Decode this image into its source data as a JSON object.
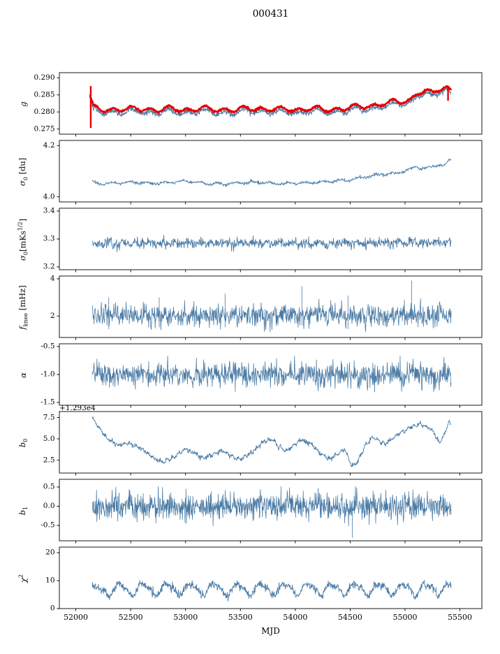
{
  "chart_data": {
    "type": "line",
    "title": "000431",
    "xlabel": "MJD",
    "xlim": [
      51850,
      55700
    ],
    "xticks": [
      52000,
      52500,
      53000,
      53500,
      54000,
      54500,
      55000,
      55500
    ],
    "legend": "none",
    "grid": false,
    "colors": {
      "series_blue": "#4a7ba6",
      "series_red": "#e60000",
      "axis": "#000000"
    },
    "panels": [
      {
        "name": "g",
        "ylabel_html": "<i>g</i>",
        "ylim": [
          0.2735,
          0.2915
        ],
        "yticks": [
          0.275,
          0.28,
          0.285,
          0.29
        ],
        "ytick_labels": [
          "0.275",
          "0.280",
          "0.285",
          "0.290"
        ],
        "series": [
          {
            "name": "g_blue",
            "color": "#4a7ba6",
            "lw": 0.9,
            "n": 1300,
            "seed": 101,
            "x_range": [
              52130,
              55420
            ],
            "noise": 0.00035,
            "wobbles": [
              {
                "period": 170,
                "amp": 0.0006,
                "phase": 0.3
              },
              {
                "period": 340,
                "amp": 0.00035,
                "phase": 1.2
              }
            ],
            "trend": [
              [
                52130,
                0.2834
              ],
              [
                52160,
                0.2803
              ],
              [
                52250,
                0.2799
              ],
              [
                52350,
                0.2801
              ],
              [
                52450,
                0.2797
              ],
              [
                52550,
                0.2802
              ],
              [
                52650,
                0.28
              ],
              [
                52750,
                0.2797
              ],
              [
                52850,
                0.2801
              ],
              [
                52950,
                0.28
              ],
              [
                53050,
                0.2798
              ],
              [
                53150,
                0.2801
              ],
              [
                53250,
                0.2799
              ],
              [
                53350,
                0.28
              ],
              [
                53450,
                0.2797
              ],
              [
                53550,
                0.2801
              ],
              [
                53650,
                0.2803
              ],
              [
                53750,
                0.28
              ],
              [
                53850,
                0.2798
              ],
              [
                53950,
                0.28
              ],
              [
                54050,
                0.2799
              ],
              [
                54150,
                0.2801
              ],
              [
                54250,
                0.2799
              ],
              [
                54350,
                0.28
              ],
              [
                54450,
                0.2802
              ],
              [
                54550,
                0.2806
              ],
              [
                54650,
                0.2809
              ],
              [
                54750,
                0.2813
              ],
              [
                54850,
                0.2818
              ],
              [
                54950,
                0.2823
              ],
              [
                55050,
                0.2828
              ],
              [
                55120,
                0.2848
              ],
              [
                55180,
                0.2852
              ],
              [
                55250,
                0.2845
              ],
              [
                55320,
                0.2862
              ],
              [
                55380,
                0.2866
              ],
              [
                55420,
                0.2856
              ]
            ]
          },
          {
            "name": "g_red",
            "color": "#e60000",
            "lw": 2.4,
            "n": 1200,
            "seed": 202,
            "trend_ref": 0,
            "y_offset": 0.0008,
            "noise": 0.00016,
            "spikes": [
              [
                52136,
                0.2753,
                0.2876
              ],
              [
                55392,
                0.2833,
                0.2872
              ]
            ]
          }
        ]
      },
      {
        "name": "sigma0_du",
        "ylabel_html": "<i>&#963;</i><sub>0</sub> [du]",
        "ylim": [
          3.98,
          4.22
        ],
        "yticks": [
          4.0,
          4.2
        ],
        "ytick_labels": [
          "4.0",
          "4.2"
        ],
        "series": [
          {
            "name": "sigma0",
            "color": "#4a7ba6",
            "lw": 0.9,
            "n": 900,
            "seed": 303,
            "x_range": [
              52150,
              55420
            ],
            "noise": 0.0028,
            "wobbles": [
              {
                "period": 160,
                "amp": 0.0035,
                "phase": 0.8
              }
            ],
            "trend": [
              [
                52150,
                4.063
              ],
              [
                52200,
                4.05
              ],
              [
                52300,
                4.052
              ],
              [
                52400,
                4.055
              ],
              [
                52500,
                4.057
              ],
              [
                52600,
                4.056
              ],
              [
                52700,
                4.052
              ],
              [
                52800,
                4.055
              ],
              [
                52900,
                4.058
              ],
              [
                53000,
                4.06
              ],
              [
                53100,
                4.058
              ],
              [
                53200,
                4.052
              ],
              [
                53300,
                4.05
              ],
              [
                53400,
                4.052
              ],
              [
                53500,
                4.054
              ],
              [
                53600,
                4.057
              ],
              [
                53700,
                4.055
              ],
              [
                53800,
                4.053
              ],
              [
                53900,
                4.052
              ],
              [
                54000,
                4.052
              ],
              [
                54100,
                4.055
              ],
              [
                54200,
                4.057
              ],
              [
                54300,
                4.059
              ],
              [
                54400,
                4.062
              ],
              [
                54500,
                4.066
              ],
              [
                54600,
                4.075
              ],
              [
                54700,
                4.082
              ],
              [
                54800,
                4.088
              ],
              [
                54900,
                4.09
              ],
              [
                55000,
                4.1
              ],
              [
                55050,
                4.108
              ],
              [
                55100,
                4.118
              ],
              [
                55150,
                4.11
              ],
              [
                55200,
                4.112
              ],
              [
                55250,
                4.12
              ],
              [
                55300,
                4.125
              ],
              [
                55350,
                4.118
              ],
              [
                55400,
                4.14
              ],
              [
                55420,
                4.15
              ]
            ]
          }
        ]
      },
      {
        "name": "sigma0_mK",
        "ylabel_html": "<i>&#963;</i><sub>0</sub>[mKs<sup>1/2</sup>]",
        "ylim": [
          3.19,
          3.41
        ],
        "yticks": [
          3.2,
          3.3,
          3.4
        ],
        "ytick_labels": [
          "3.2",
          "3.3",
          "3.4"
        ],
        "series": [
          {
            "name": "sigma0_mK",
            "color": "#4a7ba6",
            "lw": 0.9,
            "n": 900,
            "seed": 404,
            "x_range": [
              52150,
              55420
            ],
            "noise": 0.009,
            "wobbles": [
              {
                "period": 120,
                "amp": 0.004,
                "phase": 0
              }
            ],
            "trend": [
              [
                52150,
                3.282
              ],
              [
                52500,
                3.285
              ],
              [
                53000,
                3.284
              ],
              [
                53500,
                3.286
              ],
              [
                54000,
                3.284
              ],
              [
                54500,
                3.285
              ],
              [
                55000,
                3.287
              ],
              [
                55420,
                3.288
              ]
            ]
          }
        ]
      },
      {
        "name": "fknee",
        "ylabel_html": "<i>f</i><sub>knee</sub> [mHz]",
        "ylim": [
          0.85,
          4.15
        ],
        "yticks": [
          2,
          4
        ],
        "ytick_labels": [
          "2",
          "4"
        ],
        "series": [
          {
            "name": "fknee",
            "color": "#4a7ba6",
            "lw": 0.8,
            "n": 1000,
            "seed": 505,
            "x_range": [
              52150,
              55420
            ],
            "noise": 0.3,
            "wobbles": [
              {
                "period": 90,
                "amp": 0.08,
                "phase": 0
              }
            ],
            "trend": [
              [
                52150,
                2.05
              ],
              [
                53000,
                2.0
              ],
              [
                54000,
                2.05
              ],
              [
                55000,
                2.0
              ],
              [
                55420,
                2.05
              ]
            ],
            "spikes": [
              [
                52300,
                1.3,
                3.0
              ],
              [
                52760,
                1.4,
                3.0
              ],
              [
                53360,
                1.4,
                3.2
              ],
              [
                54060,
                1.5,
                3.6
              ],
              [
                54480,
                1.3,
                3.1
              ],
              [
                55060,
                1.6,
                3.9
              ]
            ]
          }
        ]
      },
      {
        "name": "alpha",
        "ylabel_html": "<i>&#945;</i>",
        "ylim": [
          -1.55,
          -0.45
        ],
        "yticks": [
          -1.5,
          -1.0,
          -0.5
        ],
        "ytick_labels": [
          "-1.5",
          "-1.0",
          "-0.5"
        ],
        "series": [
          {
            "name": "alpha",
            "color": "#4a7ba6",
            "lw": 0.8,
            "n": 1000,
            "seed": 606,
            "x_range": [
              52150,
              55420
            ],
            "noise": 0.11,
            "wobbles": [],
            "trend": [
              [
                52150,
                -1.0
              ],
              [
                55420,
                -1.0
              ]
            ]
          }
        ]
      },
      {
        "name": "b0",
        "ylabel_html": "<i>b</i><sub>0</sub>",
        "offset_text": "+1.293e4",
        "ylim": [
          1.0,
          8.2
        ],
        "yticks": [
          2.5,
          5.0,
          7.5
        ],
        "ytick_labels": [
          "2.5",
          "5.0",
          "7.5"
        ],
        "series": [
          {
            "name": "b0",
            "color": "#4a7ba6",
            "lw": 0.9,
            "n": 900,
            "seed": 707,
            "x_range": [
              52150,
              55420
            ],
            "noise": 0.13,
            "wobbles": [
              {
                "period": 55,
                "amp": 0.12,
                "phase": 0
              }
            ],
            "trend": [
              [
                52150,
                7.4
              ],
              [
                52220,
                6.2
              ],
              [
                52300,
                4.9
              ],
              [
                52380,
                4.3
              ],
              [
                52480,
                4.45
              ],
              [
                52560,
                4.1
              ],
              [
                52650,
                3.4
              ],
              [
                52730,
                2.6
              ],
              [
                52800,
                2.3
              ],
              [
                52900,
                3.0
              ],
              [
                53000,
                3.85
              ],
              [
                53080,
                3.4
              ],
              [
                53160,
                2.75
              ],
              [
                53250,
                3.2
              ],
              [
                53330,
                3.6
              ],
              [
                53420,
                3.0
              ],
              [
                53500,
                2.6
              ],
              [
                53600,
                3.4
              ],
              [
                53700,
                4.6
              ],
              [
                53790,
                4.9
              ],
              [
                53860,
                4.0
              ],
              [
                53920,
                3.5
              ],
              [
                54000,
                4.4
              ],
              [
                54060,
                4.9
              ],
              [
                54150,
                4.3
              ],
              [
                54250,
                3.1
              ],
              [
                54320,
                2.6
              ],
              [
                54400,
                3.4
              ],
              [
                54450,
                3.9
              ],
              [
                54510,
                1.9
              ],
              [
                54560,
                2.1
              ],
              [
                54650,
                4.5
              ],
              [
                54710,
                5.3
              ],
              [
                54760,
                4.8
              ],
              [
                54820,
                4.4
              ],
              [
                54900,
                5.2
              ],
              [
                55000,
                6.0
              ],
              [
                55080,
                6.5
              ],
              [
                55150,
                6.7
              ],
              [
                55210,
                6.3
              ],
              [
                55260,
                5.8
              ],
              [
                55310,
                4.5
              ],
              [
                55360,
                5.6
              ],
              [
                55400,
                7.0
              ],
              [
                55420,
                6.6
              ]
            ]
          }
        ]
      },
      {
        "name": "b1",
        "ylabel_html": "<i>b</i><sub>1</sub>",
        "ylim": [
          -0.9,
          0.7
        ],
        "yticks": [
          -0.5,
          0.0,
          0.5
        ],
        "ytick_labels": [
          "-0.5",
          "0.0",
          "0.5"
        ],
        "series": [
          {
            "name": "b1",
            "color": "#4a7ba6",
            "lw": 0.8,
            "n": 1100,
            "seed": 808,
            "x_range": [
              52150,
              55420
            ],
            "noise": 0.17,
            "wobbles": [],
            "trend": [
              [
                52150,
                0.0
              ],
              [
                55420,
                0.0
              ]
            ],
            "spikes": [
              [
                54520,
                -0.82,
                0.15
              ]
            ]
          }
        ]
      },
      {
        "name": "chi2",
        "ylabel_html": "<i>&#967;</i><sup>2</sup>",
        "ylim": [
          0,
          22
        ],
        "yticks": [
          0,
          10,
          20
        ],
        "ytick_labels": [
          "0",
          "10",
          "20"
        ],
        "series": [
          {
            "name": "chi2",
            "color": "#4a7ba6",
            "lw": 0.9,
            "n": 1000,
            "seed": 909,
            "x_range": [
              52150,
              55420
            ],
            "noise": 0.7,
            "wobbles": [
              {
                "period": 215,
                "amp": 1.9,
                "phase": 0.5
              },
              {
                "period": 107,
                "amp": 0.6,
                "phase": 1.4
              }
            ],
            "trend": [
              [
                52150,
                6.0
              ],
              [
                52400,
                7.0
              ],
              [
                55000,
                7.0
              ],
              [
                55420,
                7.3
              ]
            ]
          }
        ]
      }
    ]
  }
}
